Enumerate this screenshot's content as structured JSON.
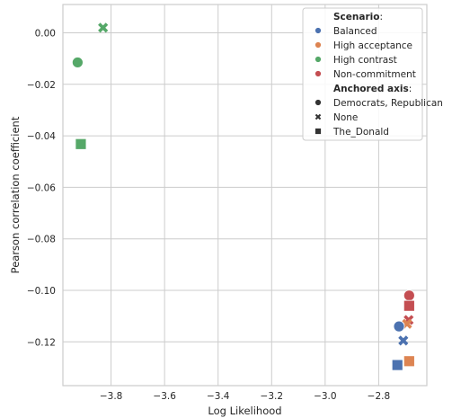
{
  "chart_data": {
    "type": "scatter",
    "xlabel": "Log Likelihood",
    "ylabel": "Pearson correlation coefficient",
    "xlim": [
      -3.98,
      -2.62
    ],
    "ylim": [
      -0.137,
      0.011
    ],
    "x_ticks": [
      -3.8,
      -3.6,
      -3.4,
      -3.2,
      -3.0,
      -2.8
    ],
    "x_tick_labels": [
      "−3.8",
      "−3.6",
      "−3.4",
      "−3.2",
      "−3.0",
      "−2.8"
    ],
    "y_ticks": [
      0.0,
      -0.02,
      -0.04,
      -0.06,
      -0.08,
      -0.1,
      -0.12
    ],
    "y_tick_labels": [
      "0.00",
      "−0.02",
      "−0.04",
      "−0.06",
      "−0.08",
      "−0.10",
      "−0.12"
    ],
    "grid": true,
    "legend_position": "top-right",
    "hue_title": "Scenario",
    "style_title": "Anchored axis",
    "hue_entries": [
      {
        "label": "Balanced",
        "color": "#4c72b0"
      },
      {
        "label": "High acceptance",
        "color": "#dd8452"
      },
      {
        "label": "High contrast",
        "color": "#55a868"
      },
      {
        "label": "Non-commitment",
        "color": "#c44e52"
      }
    ],
    "style_entries": [
      {
        "label": "Democrats, Republican",
        "marker": "circle"
      },
      {
        "label": "None",
        "marker": "x"
      },
      {
        "label": "The_Donald",
        "marker": "square"
      }
    ],
    "points": [
      {
        "x": -3.83,
        "y": 0.002,
        "scenario": "High contrast",
        "axis": "None"
      },
      {
        "x": -3.925,
        "y": -0.0115,
        "scenario": "High contrast",
        "axis": "Democrats, Republican"
      },
      {
        "x": -3.913,
        "y": -0.0432,
        "scenario": "High contrast",
        "axis": "The_Donald"
      },
      {
        "x": -2.686,
        "y": -0.102,
        "scenario": "Non-commitment",
        "axis": "Democrats, Republican"
      },
      {
        "x": -2.686,
        "y": -0.106,
        "scenario": "Non-commitment",
        "axis": "The_Donald"
      },
      {
        "x": -2.688,
        "y": -0.1115,
        "scenario": "Non-commitment",
        "axis": "None"
      },
      {
        "x": -2.694,
        "y": -0.113,
        "scenario": "High acceptance",
        "axis": "None"
      },
      {
        "x": -2.686,
        "y": -0.1275,
        "scenario": "High acceptance",
        "axis": "The_Donald"
      },
      {
        "x": -2.724,
        "y": -0.114,
        "scenario": "Balanced",
        "axis": "Democrats, Republican"
      },
      {
        "x": -2.708,
        "y": -0.1195,
        "scenario": "Balanced",
        "axis": "None"
      },
      {
        "x": -2.73,
        "y": -0.129,
        "scenario": "Balanced",
        "axis": "The_Donald"
      }
    ]
  }
}
